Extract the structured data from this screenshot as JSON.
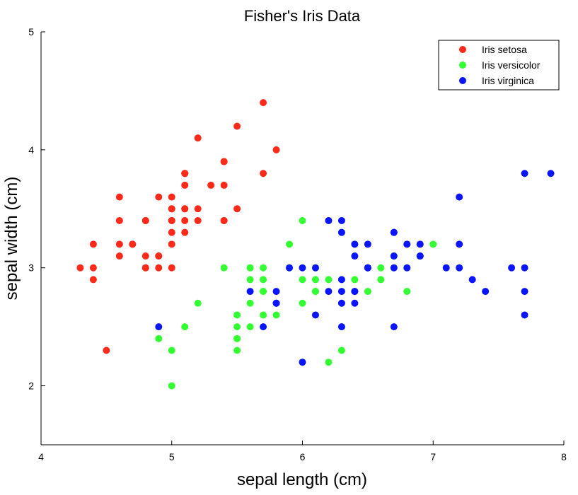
{
  "chart_data": {
    "type": "scatter",
    "title": "Fisher's Iris Data",
    "xlabel": "sepal length (cm)",
    "ylabel": "sepal width (cm)",
    "xlim": [
      4,
      8
    ],
    "ylim": [
      1.5,
      5
    ],
    "xticks": [
      4,
      5,
      6,
      7,
      8
    ],
    "yticks": [
      2,
      3,
      4,
      5
    ],
    "grid": false,
    "legend_position": "top-right",
    "series": [
      {
        "name": "Iris setosa",
        "color": "#ff2a1a",
        "points": [
          [
            5.1,
            3.5
          ],
          [
            4.9,
            3.0
          ],
          [
            4.7,
            3.2
          ],
          [
            4.6,
            3.1
          ],
          [
            5.0,
            3.6
          ],
          [
            5.4,
            3.9
          ],
          [
            4.6,
            3.4
          ],
          [
            5.0,
            3.4
          ],
          [
            4.4,
            2.9
          ],
          [
            4.9,
            3.1
          ],
          [
            5.4,
            3.7
          ],
          [
            4.8,
            3.4
          ],
          [
            4.8,
            3.0
          ],
          [
            4.3,
            3.0
          ],
          [
            5.8,
            4.0
          ],
          [
            5.7,
            4.4
          ],
          [
            5.4,
            3.9
          ],
          [
            5.1,
            3.5
          ],
          [
            5.7,
            3.8
          ],
          [
            5.1,
            3.8
          ],
          [
            5.4,
            3.4
          ],
          [
            5.1,
            3.7
          ],
          [
            4.6,
            3.6
          ],
          [
            5.1,
            3.3
          ],
          [
            4.8,
            3.4
          ],
          [
            5.0,
            3.0
          ],
          [
            5.0,
            3.4
          ],
          [
            5.2,
            3.5
          ],
          [
            5.2,
            3.4
          ],
          [
            4.7,
            3.2
          ],
          [
            4.8,
            3.1
          ],
          [
            5.4,
            3.4
          ],
          [
            5.2,
            4.1
          ],
          [
            5.5,
            4.2
          ],
          [
            4.9,
            3.1
          ],
          [
            5.0,
            3.2
          ],
          [
            5.5,
            3.5
          ],
          [
            4.9,
            3.6
          ],
          [
            4.4,
            3.0
          ],
          [
            5.1,
            3.4
          ],
          [
            5.0,
            3.5
          ],
          [
            4.5,
            2.3
          ],
          [
            4.4,
            3.2
          ],
          [
            5.0,
            3.5
          ],
          [
            5.1,
            3.8
          ],
          [
            4.8,
            3.0
          ],
          [
            5.1,
            3.8
          ],
          [
            4.6,
            3.2
          ],
          [
            5.3,
            3.7
          ],
          [
            5.0,
            3.3
          ]
        ]
      },
      {
        "name": "Iris versicolor",
        "color": "#33ff33",
        "points": [
          [
            7.0,
            3.2
          ],
          [
            6.4,
            3.2
          ],
          [
            6.9,
            3.1
          ],
          [
            5.5,
            2.3
          ],
          [
            6.5,
            2.8
          ],
          [
            5.7,
            2.8
          ],
          [
            6.3,
            3.3
          ],
          [
            4.9,
            2.4
          ],
          [
            6.6,
            2.9
          ],
          [
            5.2,
            2.7
          ],
          [
            5.0,
            2.0
          ],
          [
            5.9,
            3.0
          ],
          [
            6.0,
            2.2
          ],
          [
            6.1,
            2.9
          ],
          [
            5.6,
            2.9
          ],
          [
            6.7,
            3.1
          ],
          [
            5.6,
            3.0
          ],
          [
            5.8,
            2.7
          ],
          [
            6.2,
            2.2
          ],
          [
            5.6,
            2.5
          ],
          [
            5.9,
            3.2
          ],
          [
            6.1,
            2.8
          ],
          [
            6.3,
            2.5
          ],
          [
            6.1,
            2.8
          ],
          [
            6.4,
            2.9
          ],
          [
            6.6,
            3.0
          ],
          [
            6.8,
            2.8
          ],
          [
            6.7,
            3.0
          ],
          [
            6.0,
            2.9
          ],
          [
            5.7,
            2.6
          ],
          [
            5.5,
            2.4
          ],
          [
            5.5,
            2.4
          ],
          [
            5.8,
            2.7
          ],
          [
            6.0,
            2.7
          ],
          [
            5.4,
            3.0
          ],
          [
            6.0,
            3.4
          ],
          [
            6.7,
            3.1
          ],
          [
            6.3,
            2.3
          ],
          [
            5.6,
            3.0
          ],
          [
            5.5,
            2.5
          ],
          [
            5.5,
            2.6
          ],
          [
            6.1,
            3.0
          ],
          [
            5.8,
            2.6
          ],
          [
            5.0,
            2.3
          ],
          [
            5.6,
            2.7
          ],
          [
            5.7,
            3.0
          ],
          [
            5.7,
            2.9
          ],
          [
            6.2,
            2.9
          ],
          [
            5.1,
            2.5
          ],
          [
            5.7,
            2.8
          ]
        ]
      },
      {
        "name": "Iris virginica",
        "color": "#0a14ff",
        "points": [
          [
            6.3,
            3.3
          ],
          [
            5.8,
            2.7
          ],
          [
            7.1,
            3.0
          ],
          [
            6.3,
            2.9
          ],
          [
            6.5,
            3.0
          ],
          [
            7.6,
            3.0
          ],
          [
            4.9,
            2.5
          ],
          [
            7.3,
            2.9
          ],
          [
            6.7,
            2.5
          ],
          [
            7.2,
            3.6
          ],
          [
            6.5,
            3.2
          ],
          [
            6.4,
            2.7
          ],
          [
            6.8,
            3.0
          ],
          [
            5.7,
            2.5
          ],
          [
            5.8,
            2.8
          ],
          [
            6.4,
            3.2
          ],
          [
            6.5,
            3.0
          ],
          [
            7.7,
            3.8
          ],
          [
            7.7,
            2.6
          ],
          [
            6.0,
            2.2
          ],
          [
            6.9,
            3.2
          ],
          [
            5.6,
            2.8
          ],
          [
            7.7,
            2.8
          ],
          [
            6.3,
            2.7
          ],
          [
            6.7,
            3.3
          ],
          [
            7.2,
            3.2
          ],
          [
            6.2,
            2.8
          ],
          [
            6.1,
            3.0
          ],
          [
            6.4,
            2.8
          ],
          [
            7.2,
            3.0
          ],
          [
            7.4,
            2.8
          ],
          [
            7.9,
            3.8
          ],
          [
            6.4,
            2.8
          ],
          [
            6.3,
            2.8
          ],
          [
            6.1,
            2.6
          ],
          [
            7.7,
            3.0
          ],
          [
            6.3,
            3.4
          ],
          [
            6.4,
            3.1
          ],
          [
            6.0,
            3.0
          ],
          [
            6.9,
            3.1
          ],
          [
            6.7,
            3.1
          ],
          [
            6.9,
            3.1
          ],
          [
            5.8,
            2.7
          ],
          [
            6.8,
            3.2
          ],
          [
            6.7,
            3.3
          ],
          [
            6.7,
            3.0
          ],
          [
            6.3,
            2.5
          ],
          [
            6.5,
            3.0
          ],
          [
            6.2,
            3.4
          ],
          [
            5.9,
            3.0
          ]
        ]
      }
    ]
  }
}
